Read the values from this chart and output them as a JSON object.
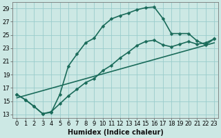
{
  "xlabel": "Humidex (Indice chaleur)",
  "background_color": "#cce8e4",
  "grid_color": "#99cccc",
  "line_color": "#1a6b5a",
  "xlim": [
    -0.5,
    23.5
  ],
  "ylim": [
    12.5,
    29.9
  ],
  "xticks": [
    0,
    1,
    2,
    3,
    4,
    5,
    6,
    7,
    8,
    9,
    10,
    11,
    12,
    13,
    14,
    15,
    16,
    17,
    18,
    19,
    20,
    21,
    22,
    23
  ],
  "yticks": [
    13,
    15,
    17,
    19,
    21,
    23,
    25,
    27,
    29
  ],
  "curve_bell_x": [
    0,
    1,
    2,
    3,
    4,
    5,
    6,
    7,
    8,
    9,
    10,
    11,
    12,
    13,
    14,
    15,
    16,
    17,
    18,
    19,
    20,
    21,
    22,
    23
  ],
  "curve_bell_y": [
    16.0,
    15.2,
    14.2,
    13.1,
    13.3,
    16.0,
    20.3,
    22.1,
    23.8,
    24.5,
    26.3,
    27.4,
    27.9,
    28.3,
    28.8,
    29.1,
    29.2,
    27.5,
    25.2,
    25.2,
    25.2,
    24.1,
    23.5,
    24.4
  ],
  "curve_lower_x": [
    0,
    1,
    2,
    3,
    4,
    5,
    6,
    7,
    8,
    9,
    10,
    11,
    12,
    13,
    14,
    15,
    16,
    17,
    18,
    19,
    20,
    21,
    22,
    23
  ],
  "curve_lower_y": [
    16.0,
    15.2,
    14.2,
    13.1,
    13.4,
    14.6,
    15.8,
    16.8,
    17.8,
    18.4,
    19.6,
    20.4,
    21.5,
    22.4,
    23.4,
    24.0,
    24.2,
    23.5,
    23.2,
    23.6,
    24.0,
    23.6,
    23.8,
    24.4
  ],
  "curve_line_x": [
    0,
    23
  ],
  "curve_line_y": [
    15.5,
    23.8
  ],
  "marker": "D",
  "marker_size": 2.5,
  "linewidth": 1.2,
  "xlabel_fontsize": 7,
  "tick_fontsize": 6
}
